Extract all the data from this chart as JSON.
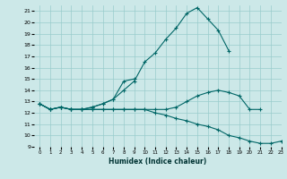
{
  "xlabel": "Humidex (Indice chaleur)",
  "bg_color": "#cce8e8",
  "grid_color": "#99cccc",
  "line_color": "#006666",
  "line1_y": [
    12.8,
    12.3,
    12.5,
    12.3,
    12.3,
    12.5,
    12.8,
    13.2,
    14.0,
    14.8,
    16.5,
    17.3,
    18.5,
    19.5,
    20.8,
    21.3,
    20.3,
    19.3,
    17.5,
    null,
    null,
    null,
    null,
    null
  ],
  "line2_y": [
    12.8,
    12.3,
    12.5,
    12.3,
    12.3,
    12.5,
    12.8,
    13.2,
    14.8,
    15.0,
    null,
    null,
    null,
    null,
    null,
    null,
    null,
    null,
    null,
    null,
    null,
    null,
    null,
    null
  ],
  "line3_y": [
    12.8,
    12.3,
    12.5,
    12.3,
    12.3,
    12.3,
    12.3,
    12.3,
    12.3,
    12.3,
    12.3,
    12.3,
    12.3,
    12.5,
    13.0,
    13.5,
    13.8,
    14.0,
    13.8,
    13.5,
    12.3,
    12.3,
    null,
    null
  ],
  "line4_y": [
    12.8,
    12.3,
    12.5,
    12.3,
    12.3,
    12.3,
    12.3,
    12.3,
    12.3,
    12.3,
    12.3,
    12.0,
    11.8,
    11.5,
    11.3,
    11.0,
    10.8,
    10.5,
    10.0,
    9.8,
    9.5,
    9.3,
    9.3,
    9.5
  ],
  "ylim": [
    9,
    21.5
  ],
  "xlim": [
    -0.5,
    23
  ],
  "yticks": [
    9,
    10,
    11,
    12,
    13,
    14,
    15,
    16,
    17,
    18,
    19,
    20,
    21
  ],
  "xticks": [
    0,
    1,
    2,
    3,
    4,
    5,
    6,
    7,
    8,
    9,
    10,
    11,
    12,
    13,
    14,
    15,
    16,
    17,
    18,
    19,
    20,
    21,
    22,
    23
  ]
}
